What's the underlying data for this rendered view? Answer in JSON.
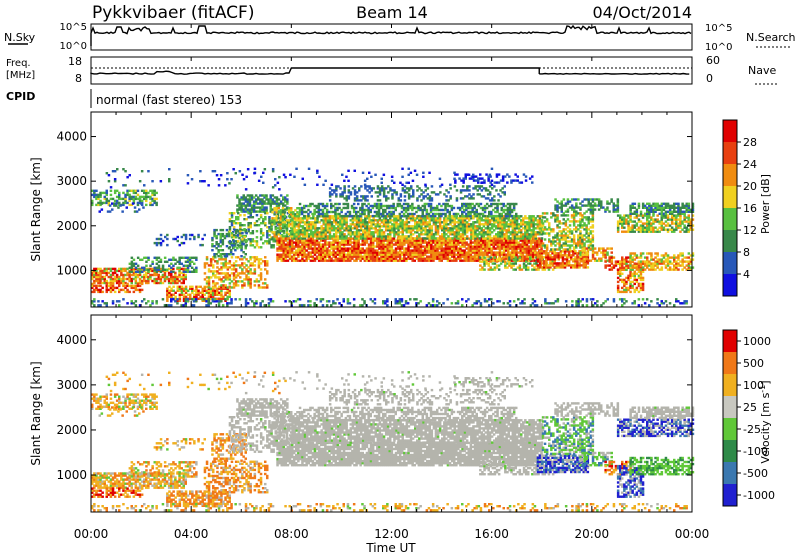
{
  "header": {
    "station": "Pykkvibaer (fitACF)",
    "beam": "Beam 14",
    "date": "04/Oct/2014"
  },
  "top_panels": {
    "nsky_label": "N.Sky",
    "nsky_ticks": [
      "10^5",
      "10^0"
    ],
    "nsearch_label": "N.Search",
    "nsearch_ticks": [
      "10^5",
      "10^0"
    ],
    "freq_label_line1": "Freq.",
    "freq_label_line2": "[MHz]",
    "freq_ticks": [
      "18",
      "8"
    ],
    "nave_label": "Nave",
    "nave_ticks": [
      "60",
      "0"
    ],
    "cpid_label": "CPID",
    "cpid_text": "normal (fast stereo) 153"
  },
  "colors": {
    "power": [
      "#1010e0",
      "#2858b8",
      "#38884a",
      "#58c040",
      "#f0d020",
      "#f08c10",
      "#e84010",
      "#e00000"
    ],
    "velocity": [
      "#2020d0",
      "#3a78b0",
      "#2e8a48",
      "#60c838",
      "#c8c8c0",
      "#f0b020",
      "#f07818",
      "#e00000"
    ],
    "ground_scatter": "#b4b4ac"
  },
  "chart_data": [
    {
      "type": "heatmap",
      "title": "Power",
      "xlabel": "Time UT",
      "ylabel": "Slant Range [km]",
      "x_ticks": [
        "00:00",
        "04:00",
        "08:00",
        "12:00",
        "16:00",
        "20:00",
        "00:00"
      ],
      "xlim_hours": [
        0,
        24
      ],
      "y_ticks": [
        1000,
        2000,
        3000,
        4000
      ],
      "ylim": [
        180,
        4550
      ],
      "colorbar_label": "Power [dB]",
      "colorbar_ticks": [
        4,
        8,
        12,
        16,
        20,
        24,
        28
      ],
      "color_range": [
        0,
        32
      ]
    },
    {
      "type": "heatmap",
      "title": "Velocity",
      "xlabel": "Time UT",
      "ylabel": "Slant Range [km]",
      "x_ticks": [
        "00:00",
        "04:00",
        "08:00",
        "12:00",
        "16:00",
        "20:00",
        "00:00"
      ],
      "xlim_hours": [
        0,
        24
      ],
      "y_ticks": [
        1000,
        2000,
        3000,
        4000
      ],
      "ylim": [
        180,
        4550
      ],
      "colorbar_label": "Velocity [m s",
      "colorbar_label_sup": "-1",
      "colorbar_label_end": "]",
      "colorbar_ticks": [
        "1000",
        "500",
        "100",
        "25",
        "-25",
        "-100",
        "-500",
        "-1000"
      ]
    }
  ]
}
